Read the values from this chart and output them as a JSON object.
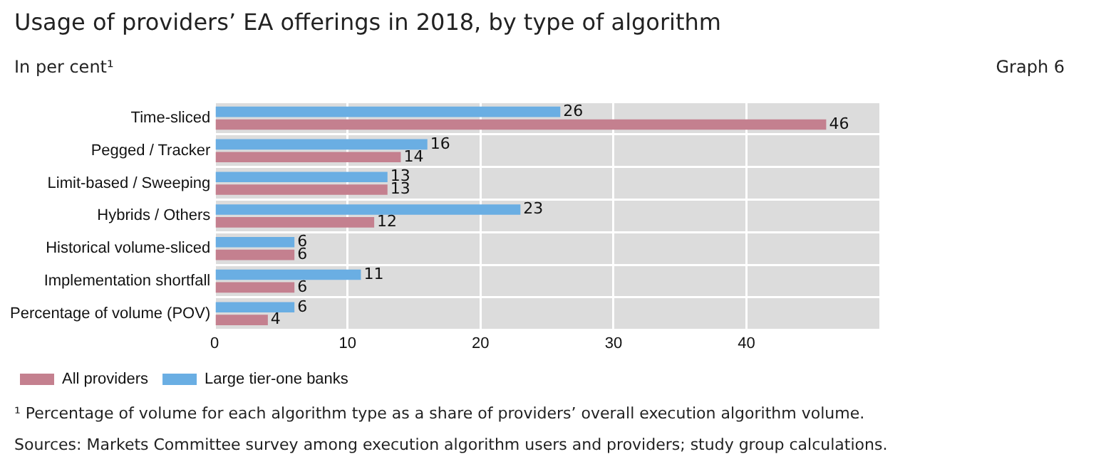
{
  "chart_data": {
    "type": "bar",
    "orientation": "horizontal",
    "title": "Usage of providers’ EA offerings in 2018, by type of algorithm",
    "subtitle": "In per cent¹",
    "annotations": [
      "Graph 6",
      "¹  Percentage of volume for each algorithm type as a share of providers’ overall execution algorithm volume.",
      "Sources: Markets Committee survey among execution algorithm users and providers; study group calculations."
    ],
    "categories": [
      "Time-sliced",
      "Pegged / Tracker",
      "Limit-based / Sweeping",
      "Hybrids / Others",
      "Historical volume-sliced",
      "Implementation shortfall",
      "Percentage of volume (POV)"
    ],
    "series": [
      {
        "name": "Large tier-one banks",
        "color": "#6aaee3",
        "values": [
          26,
          16,
          13,
          23,
          6,
          11,
          6
        ]
      },
      {
        "name": "All providers",
        "color": "#c4808f",
        "values": [
          46,
          14,
          13,
          12,
          6,
          6,
          4
        ]
      }
    ],
    "xlim": [
      0,
      50
    ],
    "xticks": [
      0,
      10,
      20,
      30,
      40
    ],
    "grid": true,
    "legend": "bottom",
    "data_labels": true
  }
}
